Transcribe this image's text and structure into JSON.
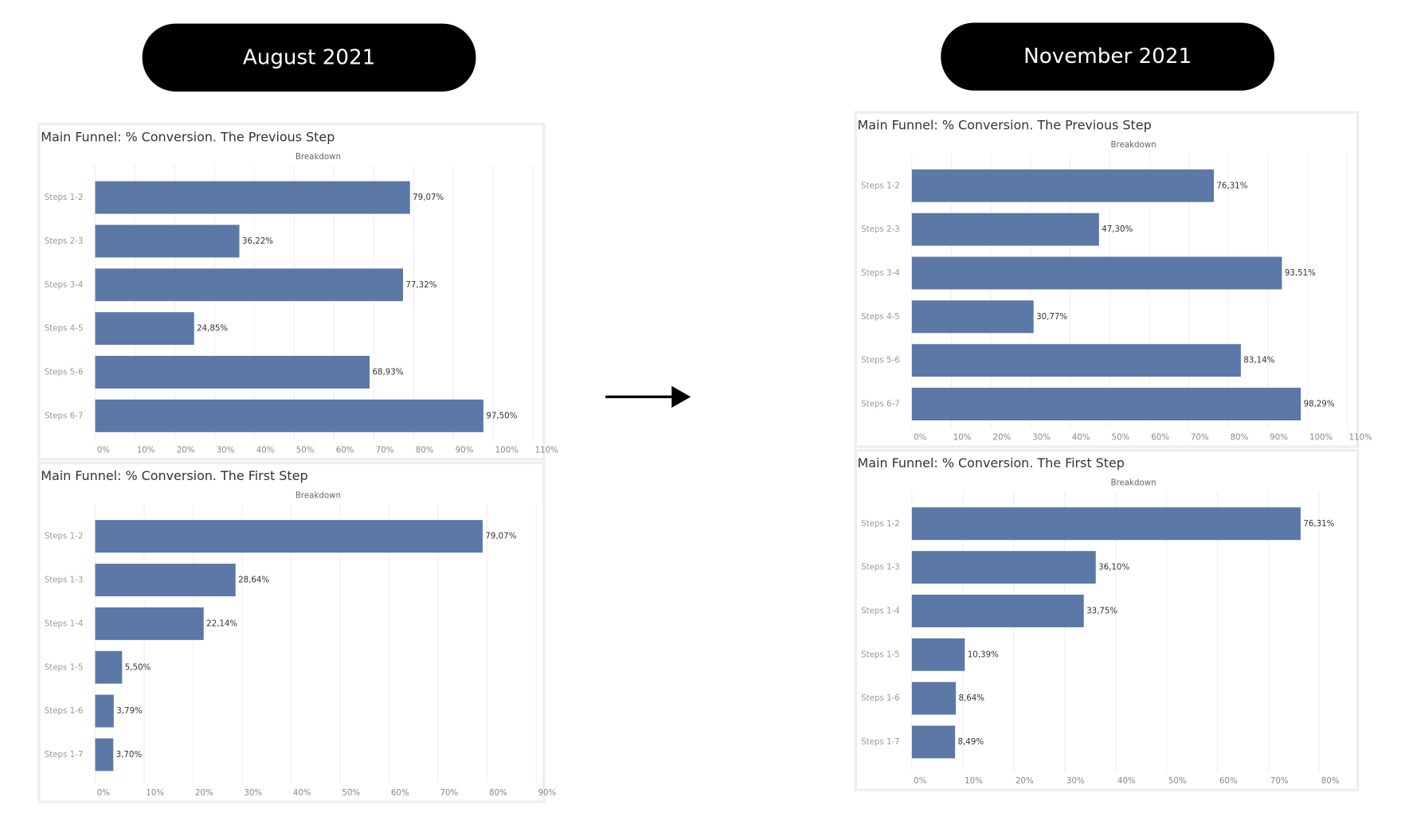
{
  "headers": [
    "August 2021",
    "November 2021"
  ],
  "chart_data": [
    {
      "type": "bar",
      "orientation": "horizontal",
      "title": "Main Funnel: % Conversion. The Previous Step",
      "subtitle": "Breakdown",
      "color": "#5b78a6",
      "grid": true,
      "categories": [
        "Steps 1-2",
        "Steps 2-3",
        "Steps 3-4",
        "Steps 4-5",
        "Steps 5-6",
        "Steps 6-7"
      ],
      "values": [
        79.07,
        36.22,
        77.32,
        24.85,
        68.93,
        97.5
      ],
      "value_labels": [
        "79,07%",
        "36,22%",
        "77,32%",
        "24,85%",
        "68,93%",
        "97,50%"
      ],
      "xlim": [
        0,
        112
      ],
      "xticks": [
        {
          "value": 0,
          "label": "0%"
        },
        {
          "value": 10,
          "label": "10%"
        },
        {
          "value": 20,
          "label": "20%"
        },
        {
          "value": 30,
          "label": "30%"
        },
        {
          "value": 40,
          "label": "40%"
        },
        {
          "value": 50,
          "label": "50%"
        },
        {
          "value": 60,
          "label": "60%"
        },
        {
          "value": 70,
          "label": "70%"
        },
        {
          "value": 80,
          "label": "80%"
        },
        {
          "value": 90,
          "label": "90%"
        },
        {
          "value": 100,
          "label": "100%"
        },
        {
          "value": 110,
          "label": "110%"
        }
      ]
    },
    {
      "type": "bar",
      "orientation": "horizontal",
      "title": "Main Funnel: % Conversion. The First Step",
      "subtitle": "Breakdown",
      "color": "#5b78a6",
      "grid": true,
      "categories": [
        "Steps 1-2",
        "Steps 1-3",
        "Steps 1-4",
        "Steps 1-5",
        "Steps 1-6",
        "Steps 1-7"
      ],
      "values": [
        79.07,
        28.64,
        22.14,
        5.5,
        3.79,
        3.7
      ],
      "value_labels": [
        "79,07%",
        "28,64%",
        "22,14%",
        "5,50%",
        "3,79%",
        "3,70%"
      ],
      "xlim": [
        0,
        91
      ],
      "xticks": [
        {
          "value": 0,
          "label": "0%"
        },
        {
          "value": 10,
          "label": "10%"
        },
        {
          "value": 20,
          "label": "20%"
        },
        {
          "value": 30,
          "label": "30%"
        },
        {
          "value": 40,
          "label": "40%"
        },
        {
          "value": 50,
          "label": "50%"
        },
        {
          "value": 60,
          "label": "60%"
        },
        {
          "value": 70,
          "label": "70%"
        },
        {
          "value": 80,
          "label": "80%"
        },
        {
          "value": 90,
          "label": "90%"
        }
      ]
    },
    {
      "type": "bar",
      "orientation": "horizontal",
      "title": "Main Funnel: % Conversion. The Previous Step",
      "subtitle": "Breakdown",
      "color": "#5b78a6",
      "grid": true,
      "categories": [
        "Steps 1-2",
        "Steps 2-3",
        "Steps 3-4",
        "Steps 4-5",
        "Steps 5-6",
        "Steps 6-7"
      ],
      "values": [
        76.31,
        47.3,
        93.51,
        30.77,
        83.14,
        98.29
      ],
      "value_labels": [
        "76,31%",
        "47,30%",
        "93,51%",
        "30,77%",
        "83,14%",
        "98,29%"
      ],
      "xlim": [
        0,
        112
      ],
      "xticks": [
        {
          "value": 0,
          "label": "0%"
        },
        {
          "value": 10,
          "label": "10%"
        },
        {
          "value": 20,
          "label": "20%"
        },
        {
          "value": 30,
          "label": "30%"
        },
        {
          "value": 40,
          "label": "40%"
        },
        {
          "value": 50,
          "label": "50%"
        },
        {
          "value": 60,
          "label": "60%"
        },
        {
          "value": 70,
          "label": "70%"
        },
        {
          "value": 80,
          "label": "80%"
        },
        {
          "value": 90,
          "label": "90%"
        },
        {
          "value": 100,
          "label": "100%"
        },
        {
          "value": 110,
          "label": "110%"
        }
      ]
    },
    {
      "type": "bar",
      "orientation": "horizontal",
      "title": "Main Funnel: % Conversion. The First Step",
      "subtitle": "Breakdown",
      "color": "#5b78a6",
      "grid": true,
      "categories": [
        "Steps 1-2",
        "Steps 1-3",
        "Steps 1-4",
        "Steps 1-5",
        "Steps 1-6",
        "Steps 1-7"
      ],
      "values": [
        76.31,
        36.1,
        33.75,
        10.39,
        8.64,
        8.49
      ],
      "value_labels": [
        "76,31%",
        "36,10%",
        "33,75%",
        "10,39%",
        "8,64%",
        "8,49%"
      ],
      "xlim": [
        0,
        87
      ],
      "xticks": [
        {
          "value": 0,
          "label": "0%"
        },
        {
          "value": 10,
          "label": "10%"
        },
        {
          "value": 20,
          "label": "20%"
        },
        {
          "value": 30,
          "label": "30%"
        },
        {
          "value": 40,
          "label": "40%"
        },
        {
          "value": 50,
          "label": "50%"
        },
        {
          "value": 60,
          "label": "60%"
        },
        {
          "value": 70,
          "label": "70%"
        },
        {
          "value": 80,
          "label": "80%"
        }
      ]
    }
  ]
}
